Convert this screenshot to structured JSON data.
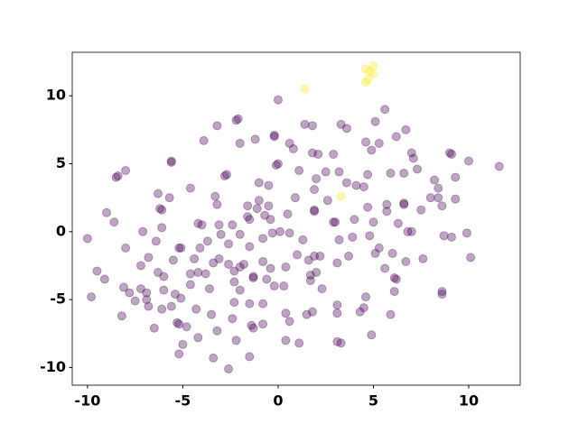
{
  "chart_data": {
    "type": "scatter",
    "xlim": [
      -10.8,
      12.7
    ],
    "ylim": [
      -11.3,
      13.2
    ],
    "xticks": [
      -10,
      -5,
      0,
      5,
      10
    ],
    "yticks": [
      -10,
      -5,
      0,
      5,
      10
    ],
    "series": [
      {
        "color": "#440154",
        "x": [
          0,
          5.6,
          -2.1,
          -2.2,
          -3.2,
          1.4,
          1.8,
          3.3,
          3.6,
          5.1,
          -0.2,
          -0.2,
          -1.2,
          -2.0,
          -3.9,
          0.6,
          0.8,
          1.8,
          2.1,
          2.9,
          4.6,
          5.3,
          6.2,
          6.7,
          4.9,
          -5.6,
          -5.6,
          0,
          -0.1,
          1.1,
          2.5,
          3.2,
          4.7,
          5.9,
          6.6,
          7.3,
          7.0,
          7.1,
          9.0,
          9.1,
          10.0,
          11.6,
          -8.4,
          -8.5,
          -8.0,
          -2.8,
          -2.7,
          -4.6,
          -1.0,
          -0.5,
          2.0,
          3.6,
          4.1,
          4.5,
          5.7,
          6.6,
          6.6,
          8.2,
          8.4,
          9.3,
          8.4,
          8.0,
          9.3,
          7.5,
          8.6,
          -6.3,
          -5.7,
          -6.2,
          -6.1,
          -3.3,
          -3.2,
          -1.6,
          -1.0,
          -0.5,
          0.9,
          1.9,
          2.6,
          4.7,
          5.7,
          6.3,
          -9.0,
          -8.6,
          -7.1,
          -6.1,
          -4.2,
          -4.0,
          -3.1,
          -2.4,
          -1.6,
          -1.5,
          -1.1,
          -0.7,
          -0.4,
          0.5,
          1.9,
          1.9,
          2.9,
          3.0,
          4.0,
          5.0,
          6.8,
          7.0,
          7.6,
          8.7,
          9.1,
          9.9,
          -10.0,
          -8.0,
          -6.4,
          -5.2,
          -4.1,
          -3.7,
          -3.0,
          -2.6,
          -2.0,
          -1.5,
          -0.8,
          -0.3,
          0.1,
          0.6,
          1.3,
          1.9,
          2.2,
          3.2,
          3.9,
          4.8,
          5.3,
          6.0,
          6.7,
          10.1,
          -9.5,
          -9.1,
          -7.2,
          -6.8,
          -6.3,
          -6.0,
          -5.5,
          -5.1,
          -4.4,
          -4.6,
          -4.2,
          -3.8,
          -3.4,
          -3.1,
          -2.6,
          -2.3,
          -2.0,
          -1.8,
          -1.3,
          -1.3,
          -0.8,
          -0.4,
          0.4,
          1.0,
          1.6,
          1.7,
          2.0,
          3.1,
          3.7,
          5.1,
          5.6,
          6.2,
          6.1,
          -8.1,
          -7.8,
          -7.2,
          -6.9,
          -6.9,
          -6.0,
          -5.4,
          -4.6,
          -3.6,
          -2.3,
          -2.0,
          -2.3,
          -0.8,
          -0.6,
          -0.2,
          0.3,
          1.7,
          2.3,
          3.1,
          4.6,
          4.5,
          6.1,
          8.6,
          8.6,
          -9.8,
          -8.2,
          -7.5,
          -6.8,
          -6.1,
          -5.6,
          -5.3,
          -5.2,
          -5.1,
          -4.3,
          -3.5,
          -2.4,
          -1.5,
          -0.8,
          0.4,
          1.5,
          1.8,
          3.1,
          4.3,
          5.9,
          -6.5,
          -4.8,
          -4.2,
          -3.2,
          -2.2,
          -1.4,
          -1.3,
          0.6,
          1.1,
          0.4,
          3.1,
          3.3,
          4.9,
          -5.0,
          -5.2,
          -3.4,
          -1.5,
          -2.6
        ],
        "y": [
          9.7,
          9.0,
          8.3,
          8.2,
          7.8,
          7.9,
          7.8,
          7.9,
          7.6,
          8.1,
          7.1,
          7.0,
          6.8,
          6.5,
          6.7,
          6.5,
          6.1,
          5.8,
          5.7,
          5.7,
          6.6,
          6.5,
          7.0,
          7.5,
          6.0,
          5.2,
          5.1,
          5.0,
          4.9,
          4.5,
          4.4,
          4.4,
          4.2,
          4.3,
          4.3,
          4.6,
          5.8,
          5.4,
          5.8,
          5.7,
          5.2,
          4.8,
          4.1,
          4.0,
          4.5,
          4.1,
          4.2,
          3.2,
          3.6,
          3.4,
          3.9,
          3.6,
          3.4,
          3.3,
          2.0,
          2.1,
          2.0,
          3.8,
          3.2,
          4.0,
          2.5,
          2.5,
          2.4,
          1.6,
          1.9,
          2.8,
          2.5,
          1.7,
          1.6,
          2.6,
          2.0,
          1.9,
          2.3,
          1.9,
          2.5,
          3.1,
          2.3,
          1.8,
          1.5,
          0.6,
          1.4,
          0.7,
          0.0,
          0.3,
          0.6,
          0.5,
          0.5,
          0.5,
          1.1,
          0.9,
          1.7,
          1.2,
          0.9,
          1.3,
          1.5,
          1.6,
          0.7,
          0.7,
          0.9,
          0.7,
          0.0,
          0.0,
          -2.0,
          -0.3,
          -0.4,
          -0.1,
          -0.5,
          -1.2,
          -0.7,
          -1.2,
          -1.2,
          -0.7,
          -0.2,
          -0.9,
          -0.2,
          -1.1,
          -0.5,
          -0.1,
          0.0,
          -0.1,
          -0.6,
          -1.8,
          -1.8,
          -0.6,
          -0.4,
          -0.3,
          -1.2,
          -1.6,
          -2.2,
          -1.9,
          -2.9,
          -3.5,
          -2.5,
          -1.9,
          -3.0,
          -3.3,
          -2.1,
          -1.2,
          -2.0,
          -3.1,
          -3.0,
          -3.1,
          -2.3,
          -2.0,
          -2.4,
          -2.9,
          -2.6,
          -2.4,
          -3.4,
          -3.3,
          -2.2,
          -2.7,
          -2.6,
          -1.7,
          -2.1,
          -3.2,
          -3.0,
          -2.3,
          -1.8,
          -1.6,
          -2.7,
          -3.5,
          -3.4,
          -4.1,
          -4.5,
          -4.2,
          -5.0,
          -4.5,
          -4.3,
          -4.6,
          -3.9,
          -4.2,
          -3.7,
          -4.3,
          -5.2,
          -5.3,
          -3.5,
          -4.0,
          -4.0,
          -3.6,
          -4.2,
          -5.4,
          -4.8,
          -5.6,
          -4.4,
          -4.4,
          -4.6,
          -4.8,
          -6.2,
          -5.1,
          -5.5,
          -5.7,
          -5.5,
          -6.7,
          -6.8,
          -4.9,
          -5.7,
          -6.1,
          -6.4,
          -5.3,
          -6.8,
          -6.0,
          -6.1,
          -5.9,
          -6.0,
          -5.9,
          -6.1,
          -7.1,
          -7.0,
          -7.8,
          -7.3,
          -8.0,
          -6.9,
          -7.1,
          -6.6,
          -8.2,
          -8.0,
          -8.1,
          -8.2,
          -7.6,
          -8.3,
          -9.0,
          -9.3,
          -9.2,
          -10.1
        ]
      },
      {
        "color": "#fde725",
        "x": [
          4.6,
          5.0,
          4.8,
          5.0,
          4.7,
          4.6,
          1.4,
          3.3
        ],
        "y": [
          12.0,
          12.2,
          11.8,
          11.6,
          11.2,
          11.0,
          10.5,
          2.6
        ]
      }
    ]
  }
}
